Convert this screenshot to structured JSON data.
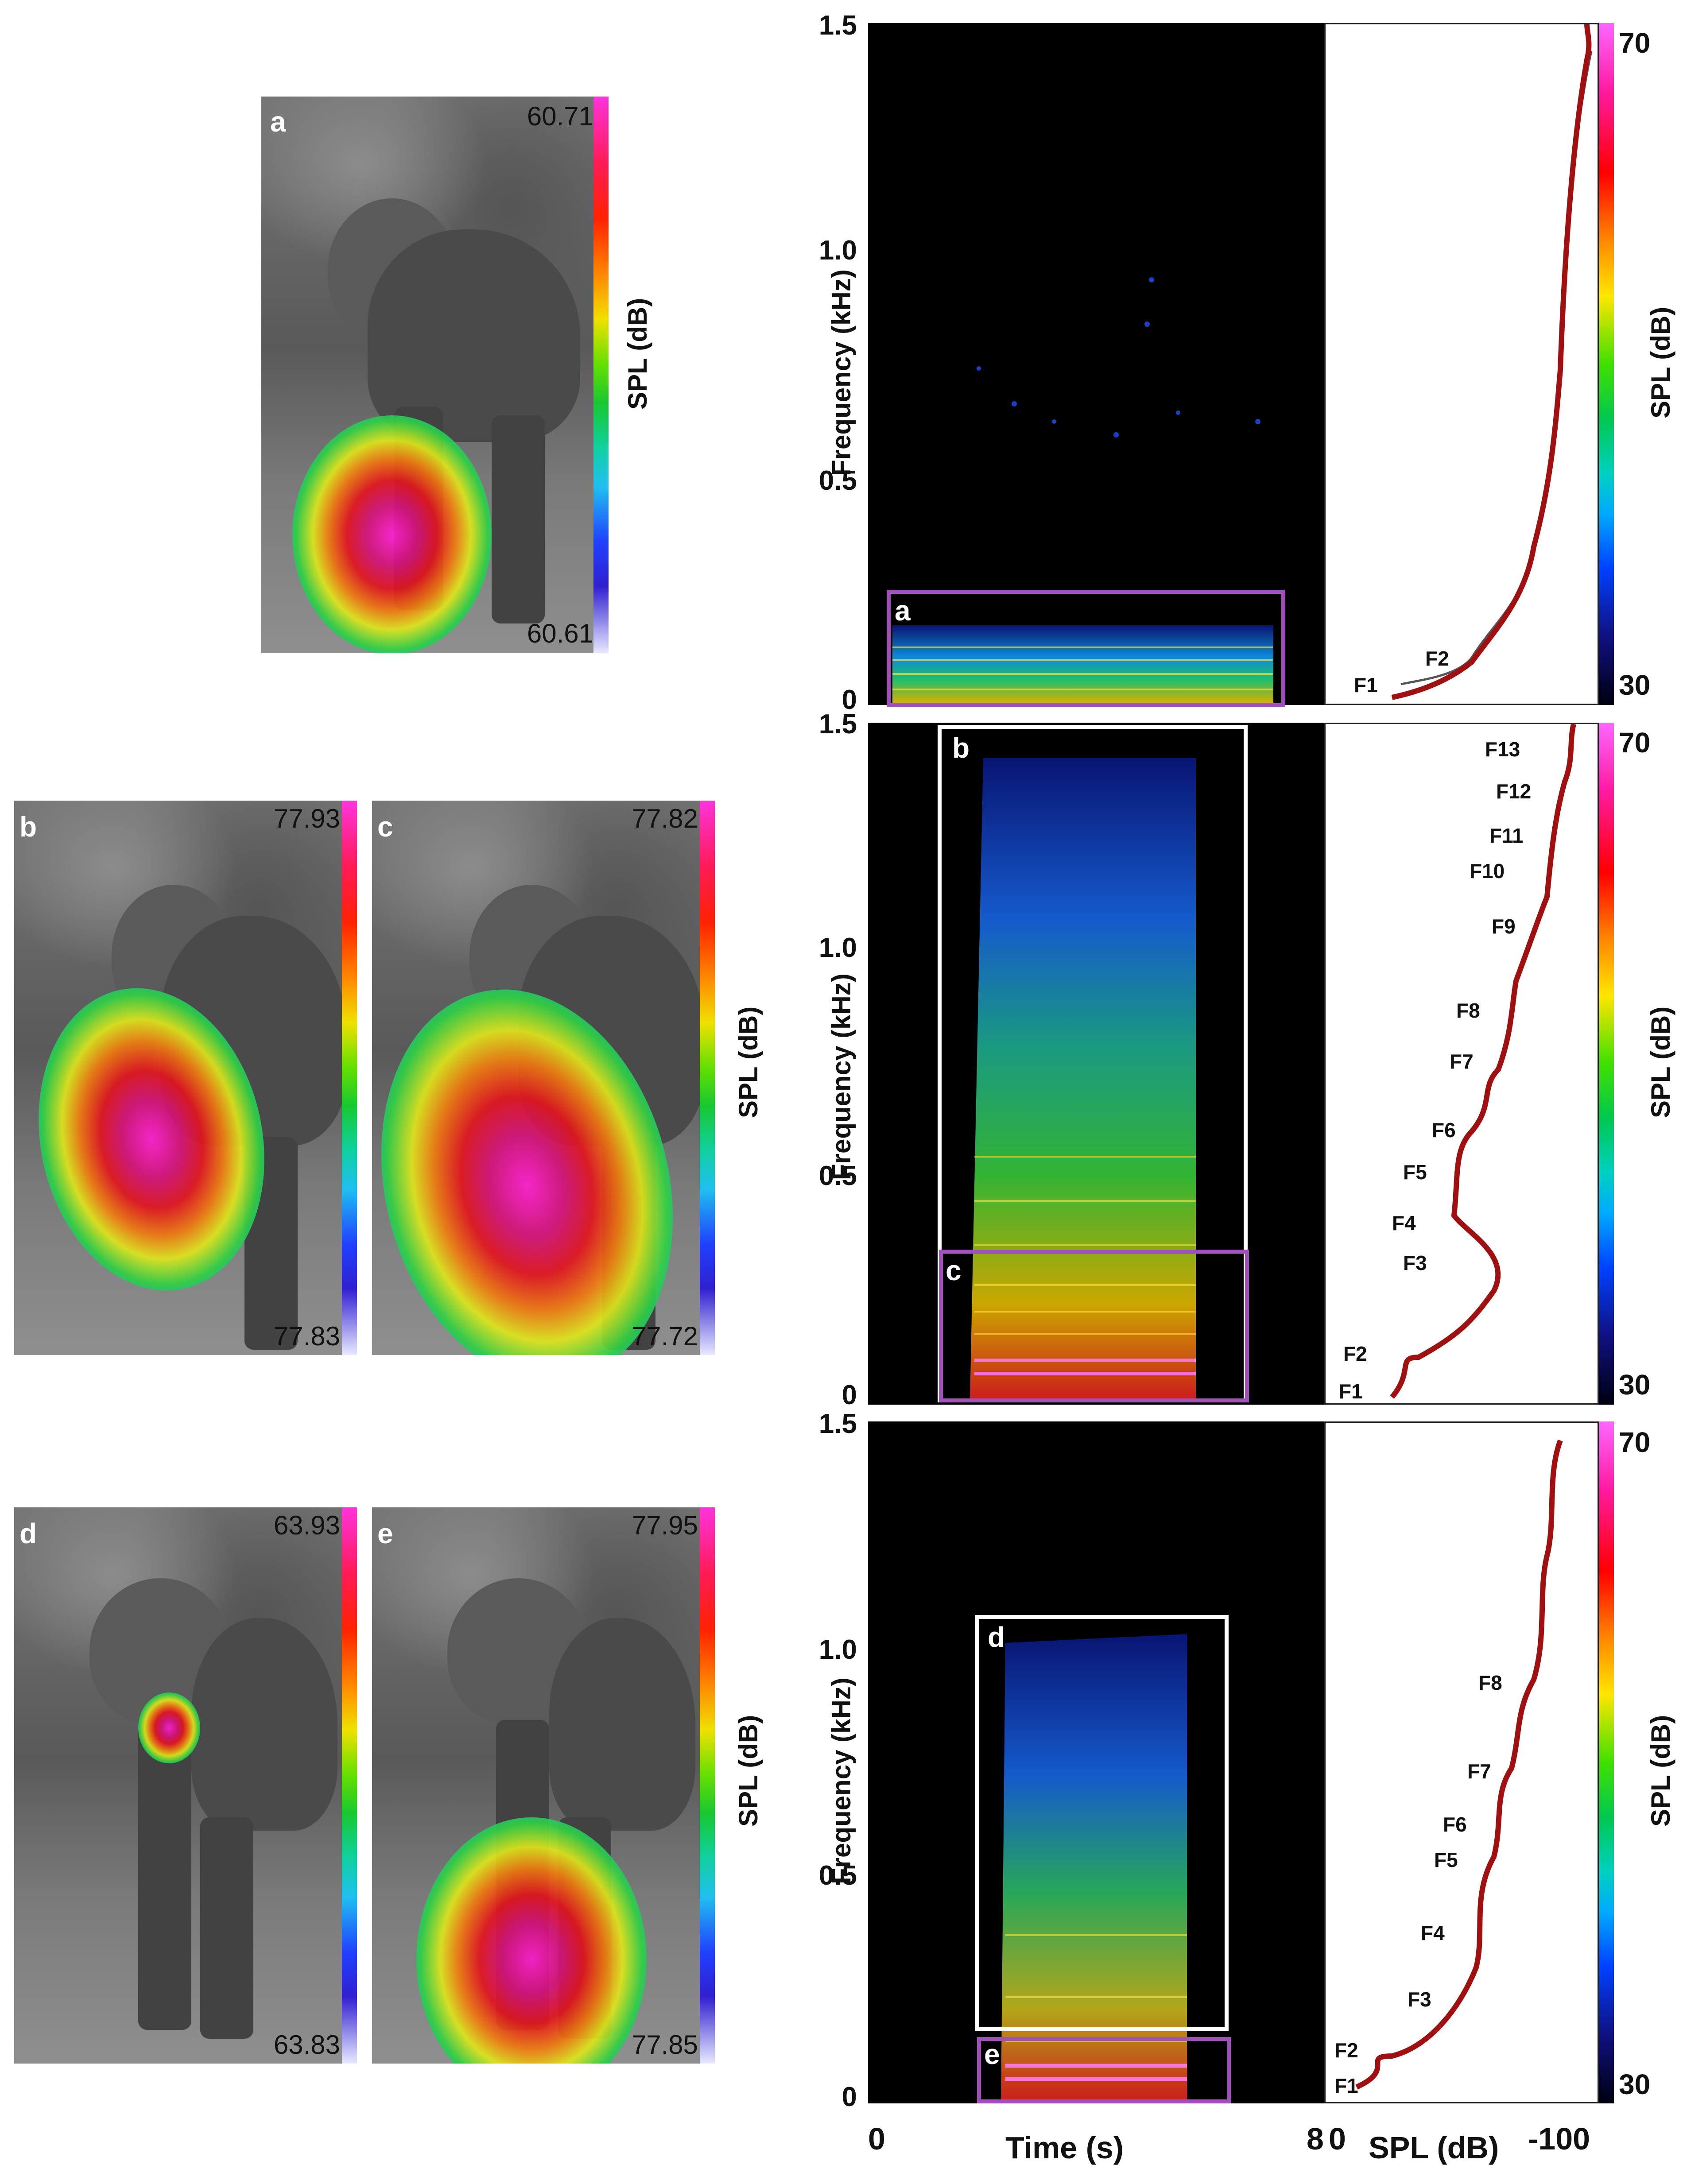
{
  "panels": {
    "a": {
      "label": "a",
      "max": "60.71",
      "min": "60.61"
    },
    "b": {
      "label": "b",
      "max": "77.93",
      "min": "77.83"
    },
    "c": {
      "label": "c",
      "max": "77.82",
      "min": "77.72"
    },
    "d": {
      "label": "d",
      "max": "63.93",
      "min": "63.83"
    },
    "e": {
      "label": "e",
      "max": "77.95",
      "min": "77.85"
    }
  },
  "colorbar_label": "SPL (dB)",
  "spectrogram": {
    "ylabel": "Frequency (kHz)",
    "xlabel": "Time (s)",
    "yticks": [
      "1.5",
      "1.0",
      "0.5",
      "0"
    ],
    "xticks": [
      "0",
      "8"
    ],
    "rows": [
      {
        "boxes": [
          "a"
        ]
      },
      {
        "boxes": [
          "b",
          "c"
        ]
      },
      {
        "boxes": [
          "d",
          "e"
        ]
      }
    ]
  },
  "profile": {
    "xlabel": "SPL (dB)",
    "xticks": [
      "0",
      "-100"
    ],
    "scale_max": "70",
    "scale_min": "30",
    "row1_formants": [
      "F1",
      "F2"
    ],
    "row2_formants": [
      "F1",
      "F2",
      "F3",
      "F4",
      "F5",
      "F6",
      "F7",
      "F8",
      "F9",
      "F10",
      "F11",
      "F12",
      "F13"
    ],
    "row3_formants": [
      "F1",
      "F2",
      "F3",
      "F4",
      "F5",
      "F6",
      "F7",
      "F8"
    ]
  },
  "colors": {
    "purple_box": "#a050b8",
    "mean_curve": "#a01010",
    "raw_curve": "#555555"
  }
}
